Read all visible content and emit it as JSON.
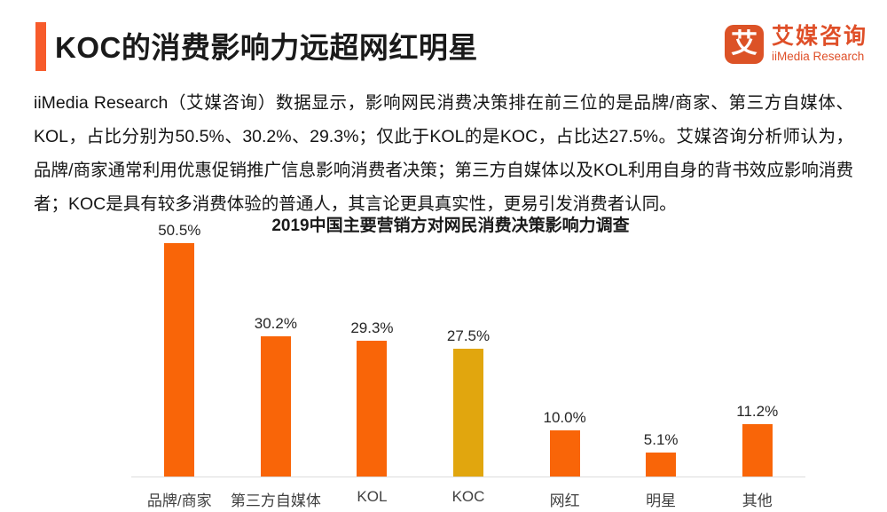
{
  "header": {
    "title": "KOC的消费影响力远超网红明星",
    "logo": {
      "icon_char": "艾",
      "brand_cn": "艾媒咨询",
      "brand_en": "iiMedia Research"
    }
  },
  "body": {
    "paragraph": "iiMedia Research（艾媒咨询）数据显示，影响网民消费决策排在前三位的是品牌/商家、第三方自媒体、KOL，占比分别为50.5%、30.2%、29.3%；仅此于KOL的是KOC，占比达27.5%。艾媒咨询分析师认为，品牌/商家通常利用优惠促销推广信息影响消费者决策；第三方自媒体以及KOL利用自身的背书效应影响消费者；KOC是具有较多消费体验的普通人，其言论更具真实性，更易引发消费者认同。"
  },
  "chart_data": {
    "type": "bar",
    "title": "2019中国主要营销方对网民消费决策影响力调查",
    "categories": [
      "品牌/商家",
      "第三方自媒体",
      "KOL",
      "KOC",
      "网红",
      "明星",
      "其他"
    ],
    "values": [
      50.5,
      30.2,
      29.3,
      27.5,
      10.0,
      5.1,
      11.2
    ],
    "value_labels": [
      "50.5%",
      "30.2%",
      "29.3%",
      "27.5%",
      "10.0%",
      "5.1%",
      "11.2%"
    ],
    "bar_colors": [
      "#F96508",
      "#F96508",
      "#F96508",
      "#E1A60E",
      "#F96508",
      "#F96508",
      "#F96508"
    ],
    "highlight_index": 3,
    "ylim": [
      0,
      55
    ],
    "grid": false,
    "legend": false,
    "xlabel": "",
    "ylabel": ""
  },
  "colors": {
    "accent_orange": "#F75B2B",
    "bar_orange": "#F96508",
    "bar_gold": "#E1A60E",
    "logo_orange": "#DC5226",
    "axis_line": "#DCDCDC"
  }
}
